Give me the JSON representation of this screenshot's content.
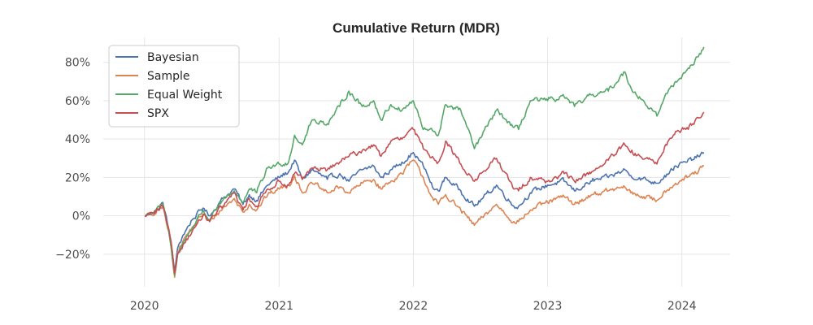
{
  "chart_data": {
    "type": "line",
    "title": "Cumulative Return (MDR)",
    "xlabel": "",
    "ylabel": "",
    "x_ticks": [
      "2020",
      "2021",
      "2022",
      "2023",
      "2024"
    ],
    "y_ticks": [
      "80%",
      "60%",
      "40%",
      "20%",
      "0%",
      "−20%"
    ],
    "y_tick_values": [
      80,
      60,
      40,
      20,
      0,
      -20
    ],
    "xlim": [
      "2019-09-11",
      "2024-05-11"
    ],
    "ylim": [
      -37,
      93
    ],
    "grid": true,
    "legend_position": "top-left",
    "series": [
      {
        "name": "Bayesian",
        "color": "#4c72b0",
        "points": [
          [
            "2020-01-02",
            0
          ],
          [
            "2020-02-01",
            2
          ],
          [
            "2020-02-20",
            7
          ],
          [
            "2020-03-10",
            -10
          ],
          [
            "2020-03-23",
            -29
          ],
          [
            "2020-03-31",
            -17
          ],
          [
            "2020-04-15",
            -10
          ],
          [
            "2020-05-10",
            -2
          ],
          [
            "2020-06-08",
            4
          ],
          [
            "2020-06-26",
            0
          ],
          [
            "2020-08-01",
            9
          ],
          [
            "2020-09-01",
            14
          ],
          [
            "2020-09-25",
            6
          ],
          [
            "2020-10-12",
            11
          ],
          [
            "2020-11-01",
            8
          ],
          [
            "2020-12-01",
            16
          ],
          [
            "2021-01-01",
            20
          ],
          [
            "2021-01-27",
            23
          ],
          [
            "2021-02-12",
            29
          ],
          [
            "2021-03-05",
            19
          ],
          [
            "2021-04-01",
            24
          ],
          [
            "2021-05-12",
            19
          ],
          [
            "2021-06-15",
            22
          ],
          [
            "2021-07-10",
            18
          ],
          [
            "2021-08-15",
            24
          ],
          [
            "2021-09-15",
            26
          ],
          [
            "2021-10-05",
            20
          ],
          [
            "2021-11-01",
            24
          ],
          [
            "2021-12-01",
            28
          ],
          [
            "2022-01-01",
            33
          ],
          [
            "2022-01-28",
            26
          ],
          [
            "2022-02-25",
            14
          ],
          [
            "2022-03-10",
            13
          ],
          [
            "2022-03-30",
            20
          ],
          [
            "2022-05-10",
            13
          ],
          [
            "2022-06-16",
            5
          ],
          [
            "2022-08-15",
            16
          ],
          [
            "2022-10-01",
            5
          ],
          [
            "2022-10-14",
            5
          ],
          [
            "2022-11-15",
            12
          ],
          [
            "2023-01-01",
            16
          ],
          [
            "2023-02-15",
            18
          ],
          [
            "2023-03-15",
            13
          ],
          [
            "2023-05-01",
            18
          ],
          [
            "2023-06-15",
            20
          ],
          [
            "2023-07-30",
            24
          ],
          [
            "2023-08-15",
            21
          ],
          [
            "2023-10-25",
            17
          ],
          [
            "2023-11-15",
            21
          ],
          [
            "2023-12-15",
            26
          ],
          [
            "2024-01-15",
            28
          ],
          [
            "2024-02-15",
            31
          ],
          [
            "2024-03-01",
            33
          ]
        ]
      },
      {
        "name": "Sample",
        "color": "#dd8452",
        "points": [
          [
            "2020-01-02",
            0
          ],
          [
            "2020-02-01",
            1
          ],
          [
            "2020-02-20",
            5
          ],
          [
            "2020-03-10",
            -12
          ],
          [
            "2020-03-23",
            -32
          ],
          [
            "2020-03-31",
            -19
          ],
          [
            "2020-04-15",
            -13
          ],
          [
            "2020-05-10",
            -6
          ],
          [
            "2020-06-08",
            1
          ],
          [
            "2020-06-26",
            -3
          ],
          [
            "2020-08-01",
            4
          ],
          [
            "2020-09-01",
            9
          ],
          [
            "2020-09-25",
            2
          ],
          [
            "2020-10-12",
            6
          ],
          [
            "2020-11-01",
            3
          ],
          [
            "2020-12-01",
            11
          ],
          [
            "2021-01-01",
            14
          ],
          [
            "2021-01-27",
            16
          ],
          [
            "2021-02-12",
            21
          ],
          [
            "2021-03-05",
            12
          ],
          [
            "2021-04-01",
            17
          ],
          [
            "2021-05-12",
            12
          ],
          [
            "2021-06-15",
            15
          ],
          [
            "2021-07-10",
            12
          ],
          [
            "2021-08-15",
            17
          ],
          [
            "2021-09-15",
            19
          ],
          [
            "2021-10-05",
            14
          ],
          [
            "2021-11-01",
            18
          ],
          [
            "2021-12-01",
            22
          ],
          [
            "2022-01-01",
            29
          ],
          [
            "2022-01-28",
            20
          ],
          [
            "2022-02-25",
            8
          ],
          [
            "2022-03-10",
            6
          ],
          [
            "2022-03-30",
            11
          ],
          [
            "2022-05-10",
            3
          ],
          [
            "2022-06-16",
            -5
          ],
          [
            "2022-08-15",
            6
          ],
          [
            "2022-10-01",
            -3
          ],
          [
            "2022-10-14",
            -3
          ],
          [
            "2022-11-15",
            3
          ],
          [
            "2023-01-01",
            7
          ],
          [
            "2023-02-15",
            10
          ],
          [
            "2023-03-15",
            6
          ],
          [
            "2023-05-01",
            11
          ],
          [
            "2023-06-15",
            13
          ],
          [
            "2023-07-30",
            15
          ],
          [
            "2023-08-15",
            12
          ],
          [
            "2023-10-25",
            8
          ],
          [
            "2023-11-15",
            13
          ],
          [
            "2023-12-15",
            17
          ],
          [
            "2024-01-15",
            20
          ],
          [
            "2024-02-15",
            23
          ],
          [
            "2024-03-01",
            26
          ]
        ]
      },
      {
        "name": "Equal Weight",
        "color": "#55a868",
        "points": [
          [
            "2020-01-02",
            0
          ],
          [
            "2020-02-01",
            3
          ],
          [
            "2020-02-20",
            6
          ],
          [
            "2020-03-10",
            -12
          ],
          [
            "2020-03-23",
            -31
          ],
          [
            "2020-03-31",
            -20
          ],
          [
            "2020-04-15",
            -14
          ],
          [
            "2020-05-10",
            -6
          ],
          [
            "2020-06-08",
            3
          ],
          [
            "2020-06-26",
            -2
          ],
          [
            "2020-08-01",
            8
          ],
          [
            "2020-09-01",
            13
          ],
          [
            "2020-09-25",
            7
          ],
          [
            "2020-10-12",
            14
          ],
          [
            "2020-11-01",
            12
          ],
          [
            "2020-12-01",
            25
          ],
          [
            "2021-01-01",
            27
          ],
          [
            "2021-01-27",
            28
          ],
          [
            "2021-02-12",
            42
          ],
          [
            "2021-03-05",
            37
          ],
          [
            "2021-04-01",
            50
          ],
          [
            "2021-05-12",
            48
          ],
          [
            "2021-06-15",
            57
          ],
          [
            "2021-07-10",
            65
          ],
          [
            "2021-08-15",
            57
          ],
          [
            "2021-09-15",
            60
          ],
          [
            "2021-10-05",
            50
          ],
          [
            "2021-11-01",
            58
          ],
          [
            "2021-12-01",
            55
          ],
          [
            "2022-01-01",
            60
          ],
          [
            "2022-01-28",
            45
          ],
          [
            "2022-02-25",
            44
          ],
          [
            "2022-03-10",
            42
          ],
          [
            "2022-03-30",
            58
          ],
          [
            "2022-05-10",
            55
          ],
          [
            "2022-06-16",
            35
          ],
          [
            "2022-08-15",
            55
          ],
          [
            "2022-10-01",
            46
          ],
          [
            "2022-10-14",
            45
          ],
          [
            "2022-11-15",
            60
          ],
          [
            "2023-01-01",
            60
          ],
          [
            "2023-02-15",
            62
          ],
          [
            "2023-03-15",
            57
          ],
          [
            "2023-05-01",
            63
          ],
          [
            "2023-06-15",
            65
          ],
          [
            "2023-07-30",
            75
          ],
          [
            "2023-08-15",
            67
          ],
          [
            "2023-10-25",
            52
          ],
          [
            "2023-11-15",
            62
          ],
          [
            "2023-12-15",
            70
          ],
          [
            "2024-01-15",
            76
          ],
          [
            "2024-02-15",
            83
          ],
          [
            "2024-03-01",
            88
          ]
        ]
      },
      {
        "name": "SPX",
        "color": "#c44e52",
        "points": [
          [
            "2020-01-02",
            0
          ],
          [
            "2020-02-01",
            2
          ],
          [
            "2020-02-20",
            5
          ],
          [
            "2020-03-10",
            -10
          ],
          [
            "2020-03-23",
            -30
          ],
          [
            "2020-03-31",
            -20
          ],
          [
            "2020-04-15",
            -15
          ],
          [
            "2020-05-10",
            -8
          ],
          [
            "2020-06-08",
            0
          ],
          [
            "2020-06-26",
            -3
          ],
          [
            "2020-08-01",
            5
          ],
          [
            "2020-09-01",
            12
          ],
          [
            "2020-09-25",
            3
          ],
          [
            "2020-10-12",
            9
          ],
          [
            "2020-11-01",
            5
          ],
          [
            "2020-12-01",
            14
          ],
          [
            "2021-01-01",
            18
          ],
          [
            "2021-01-27",
            16
          ],
          [
            "2021-02-12",
            22
          ],
          [
            "2021-03-05",
            19
          ],
          [
            "2021-04-01",
            25
          ],
          [
            "2021-05-12",
            24
          ],
          [
            "2021-06-15",
            28
          ],
          [
            "2021-07-10",
            31
          ],
          [
            "2021-08-15",
            34
          ],
          [
            "2021-09-15",
            37
          ],
          [
            "2021-10-05",
            31
          ],
          [
            "2021-11-01",
            39
          ],
          [
            "2021-12-01",
            40
          ],
          [
            "2022-01-01",
            45
          ],
          [
            "2022-01-28",
            35
          ],
          [
            "2022-02-25",
            30
          ],
          [
            "2022-03-10",
            28
          ],
          [
            "2022-03-30",
            39
          ],
          [
            "2022-05-10",
            27
          ],
          [
            "2022-06-16",
            18
          ],
          [
            "2022-08-15",
            30
          ],
          [
            "2022-10-01",
            14
          ],
          [
            "2022-10-14",
            13
          ],
          [
            "2022-11-15",
            20
          ],
          [
            "2023-01-01",
            18
          ],
          [
            "2023-02-15",
            22
          ],
          [
            "2023-03-15",
            18
          ],
          [
            "2023-05-01",
            23
          ],
          [
            "2023-06-15",
            29
          ],
          [
            "2023-07-30",
            37
          ],
          [
            "2023-08-15",
            33
          ],
          [
            "2023-10-25",
            27
          ],
          [
            "2023-11-15",
            36
          ],
          [
            "2023-12-15",
            44
          ],
          [
            "2024-01-15",
            46
          ],
          [
            "2024-02-15",
            51
          ],
          [
            "2024-03-01",
            54
          ]
        ]
      }
    ]
  }
}
